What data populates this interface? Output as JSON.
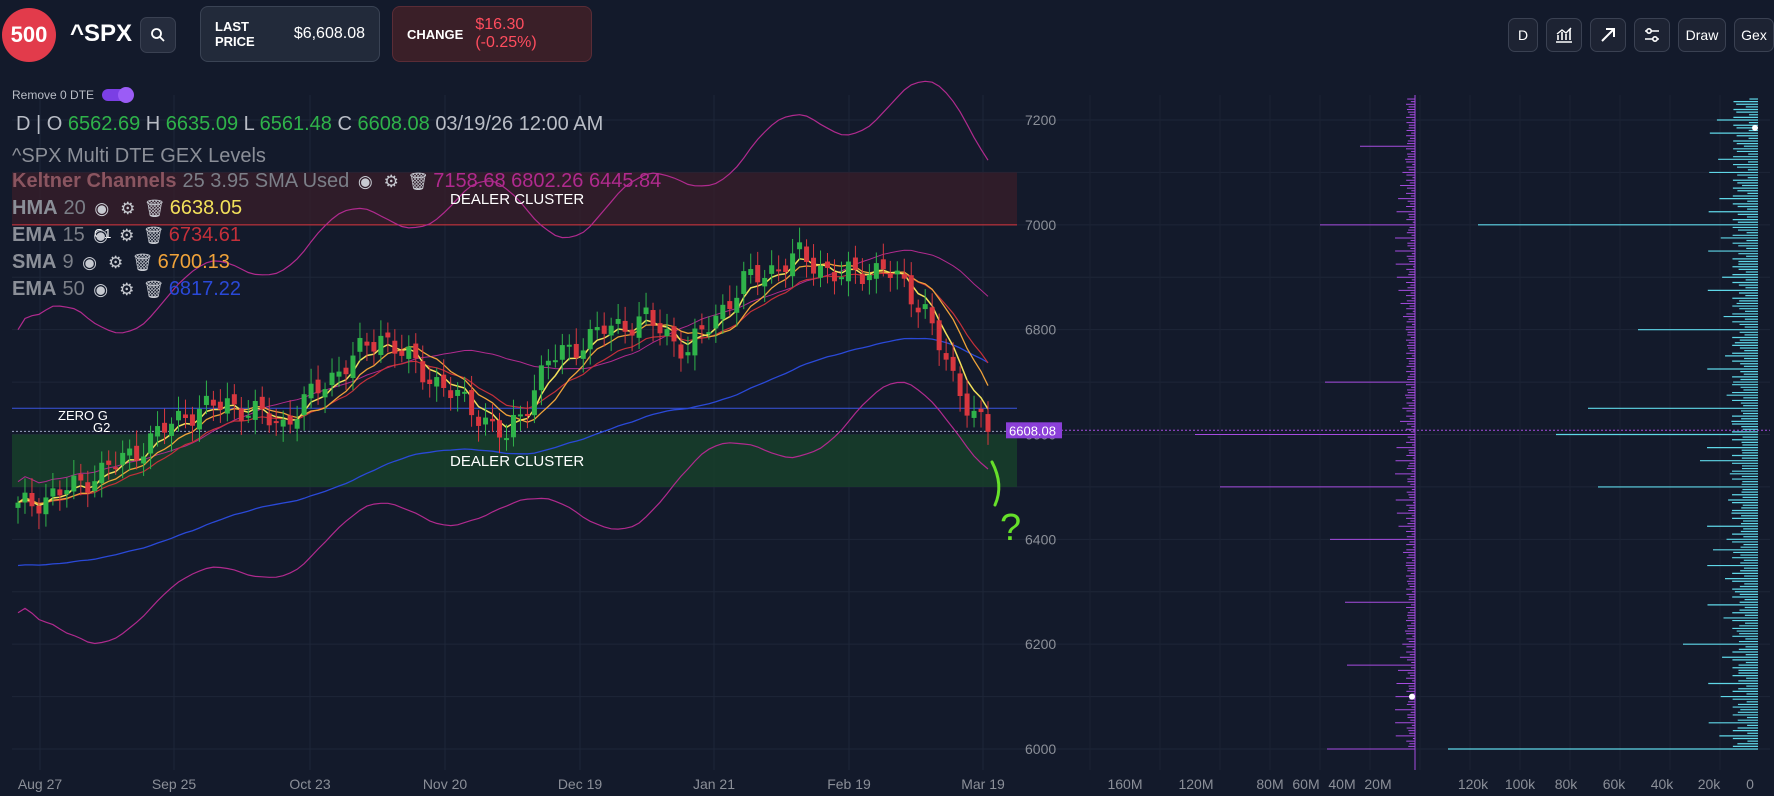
{
  "header": {
    "logo": "500",
    "ticker": "^SPX",
    "last_price_label": "LAST PRICE",
    "last_price": "$6,608.08",
    "change_label": "CHANGE",
    "change": "$16.30 (-0.25%)",
    "toolbar": {
      "interval": "D",
      "draw": "Draw",
      "gex": "Gex"
    }
  },
  "toggle": {
    "label": "Remove 0 DTE",
    "on": true
  },
  "ohlc": {
    "interval": "D",
    "o_label": "O",
    "o": "6562.69",
    "h_label": "H",
    "h": "6635.09",
    "l_label": "L",
    "l": "6561.48",
    "c_label": "C",
    "c": "6608.08",
    "timestamp": "03/19/26 12:00 AM"
  },
  "study_title": "^SPX Multi DTE GEX Levels",
  "indicators": [
    {
      "name": "Keltner Channels",
      "params": "25 3.95 SMA Used",
      "value": "7158.68 6802.26 6445.84",
      "color": "#b02a8e"
    },
    {
      "name": "HMA",
      "params": "20",
      "value": "6638.05",
      "color": "#f2e05a"
    },
    {
      "name": "EMA",
      "params": "15",
      "value": "6734.61",
      "color": "#c4303a"
    },
    {
      "name": "SMA",
      "params": "9",
      "value": "6700.13",
      "color": "#f0a33a"
    },
    {
      "name": "EMA",
      "params": "50",
      "value": "6817.22",
      "color": "#2a49d8"
    }
  ],
  "annotations": {
    "g1": "G1",
    "zero_g": "ZERO G",
    "g2": "G2",
    "dealer_cluster_top": "DEALER CLUSTER",
    "dealer_cluster_bottom": "DEALER CLUSTER",
    "question": "?"
  },
  "price_axis": {
    "labels": [
      "7200",
      "7000",
      "6800",
      "6600",
      "6400",
      "6200",
      "6000"
    ],
    "last_price_tag": "6608.08"
  },
  "date_axis": {
    "labels": [
      "Aug 27",
      "Sep 25",
      "Oct 23",
      "Nov 20",
      "Dec 19",
      "Jan 21",
      "Feb 19",
      "Mar 19"
    ]
  },
  "gex_axis_left": {
    "labels": [
      "160M",
      "120M",
      "80M",
      "60M",
      "40M",
      "20M"
    ]
  },
  "gex_axis_right": {
    "labels": [
      "120k",
      "100k",
      "80k",
      "60k",
      "40k",
      "20k",
      "0"
    ]
  },
  "colors": {
    "bull": "#2fb34a",
    "bear": "#d8373f",
    "keltner": "#b02a8e",
    "hma": "#f2e05a",
    "ema15": "#c4303a",
    "sma9": "#f0a33a",
    "ema50": "#2a49d8",
    "gex_purple": "#a64ce0",
    "gex_cyan": "#5fd7e8"
  },
  "icons": {
    "search": "search-icon",
    "visibility": "eye-icon",
    "settings": "gear-icon",
    "delete": "trash-icon"
  },
  "chart_data": {
    "type": "candlestick",
    "x": [
      "Aug 27",
      "Sep 25",
      "Oct 23",
      "Nov 20",
      "Dec 19",
      "Jan 21",
      "Feb 19",
      "Mar 19"
    ],
    "close": [
      6465,
      6630,
      6710,
      6600,
      6800,
      6930,
      6850,
      6608
    ],
    "ema50": [
      6250,
      6420,
      6560,
      6640,
      6700,
      6790,
      6860,
      6817
    ],
    "keltner_upper": [
      6900,
      7000,
      7090,
      7150,
      7130,
      7200,
      7220,
      7158
    ],
    "keltner_lower": [
      6180,
      6330,
      6430,
      6380,
      6450,
      6580,
      6610,
      6446
    ],
    "ylim": [
      5960,
      7240
    ],
    "levels": {
      "zero_g": 6650,
      "g2": 6606
    },
    "zones": [
      {
        "label": "DEALER CLUSTER",
        "from": 7000,
        "to": 7100
      },
      {
        "label": "DEALER CLUSTER",
        "from": 6500,
        "to": 6600
      }
    ]
  }
}
